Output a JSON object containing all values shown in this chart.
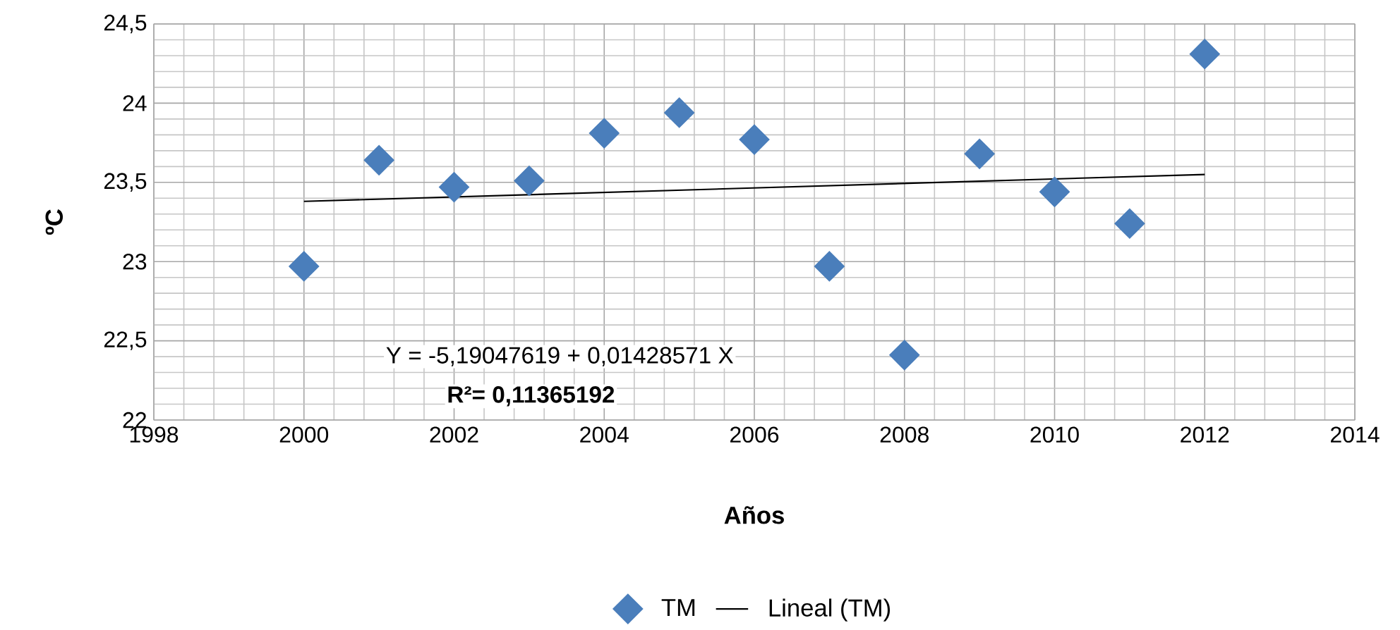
{
  "chart_data": {
    "type": "scatter",
    "xlabel": "Años",
    "ylabel": "ºC",
    "series": [
      {
        "name": "TM",
        "color": "#4a7ebb",
        "marker": "diamond",
        "x": [
          2000,
          2001,
          2002,
          2003,
          2004,
          2005,
          2006,
          2007,
          2008,
          2009,
          2010,
          2011,
          2012
        ],
        "values": [
          22.97,
          23.64,
          23.47,
          23.51,
          23.81,
          23.94,
          23.77,
          22.97,
          22.41,
          23.68,
          23.44,
          23.24,
          24.31
        ]
      },
      {
        "name": "Lineal (TM)",
        "type": "line",
        "color": "#000000",
        "marker": "none",
        "x": [
          2000,
          2012
        ],
        "values": [
          23.38,
          23.55
        ]
      }
    ],
    "xlim": [
      1998,
      2014
    ],
    "ylim": [
      22,
      24.5
    ],
    "xticks": [
      1998,
      2000,
      2002,
      2004,
      2006,
      2008,
      2010,
      2012,
      2014
    ],
    "yticks": [
      22,
      {
        "value": 22.5,
        "label": "22,5"
      },
      23,
      {
        "value": 23.5,
        "label": "23,5"
      },
      24,
      {
        "value": 24.5,
        "label": "24,5"
      }
    ],
    "annotations": [
      "Y = -5,19047619 + 0,01428571 X",
      "**R²= 0,11365192**"
    ],
    "grid": true,
    "legend": "bottom"
  }
}
